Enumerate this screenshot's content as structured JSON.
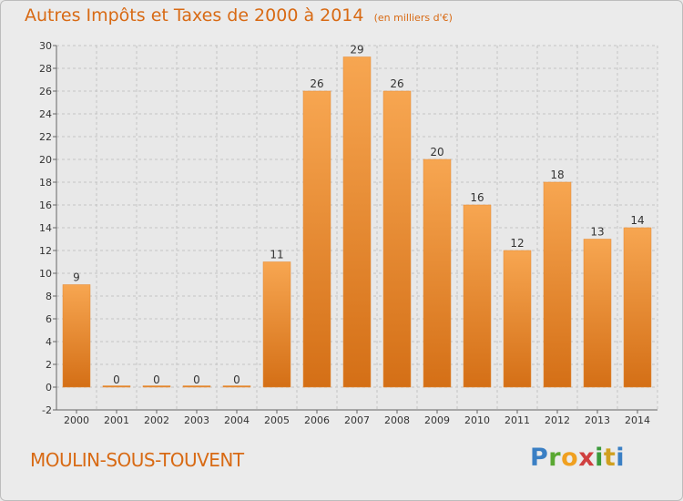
{
  "chart_data": {
    "type": "bar",
    "title": "Autres Impôts et Taxes de 2000 à 2014",
    "subtitle": "(en milliers d'€)",
    "categories": [
      "2000",
      "2001",
      "2002",
      "2003",
      "2004",
      "2005",
      "2006",
      "2007",
      "2008",
      "2009",
      "2010",
      "2011",
      "2012",
      "2013",
      "2014"
    ],
    "values": [
      9,
      0,
      0,
      0,
      0,
      11,
      26,
      29,
      26,
      20,
      16,
      12,
      18,
      13,
      14
    ],
    "ylim": [
      -2,
      30
    ],
    "yticks": [
      -2,
      0,
      2,
      4,
      6,
      8,
      10,
      12,
      14,
      16,
      18,
      20,
      22,
      24,
      26,
      28,
      30
    ],
    "grid": true,
    "bar_color": "#f09a44"
  },
  "location": "MOULIN-SOUS-TOUVENT",
  "logo": {
    "letters": [
      "P",
      "r",
      "o",
      "x",
      "i",
      "t",
      "i"
    ],
    "colors": [
      "#3a7fc4",
      "#5aa832",
      "#f0a020",
      "#d04040",
      "#3a9a3a",
      "#d0a020",
      "#3a7fc4"
    ]
  }
}
